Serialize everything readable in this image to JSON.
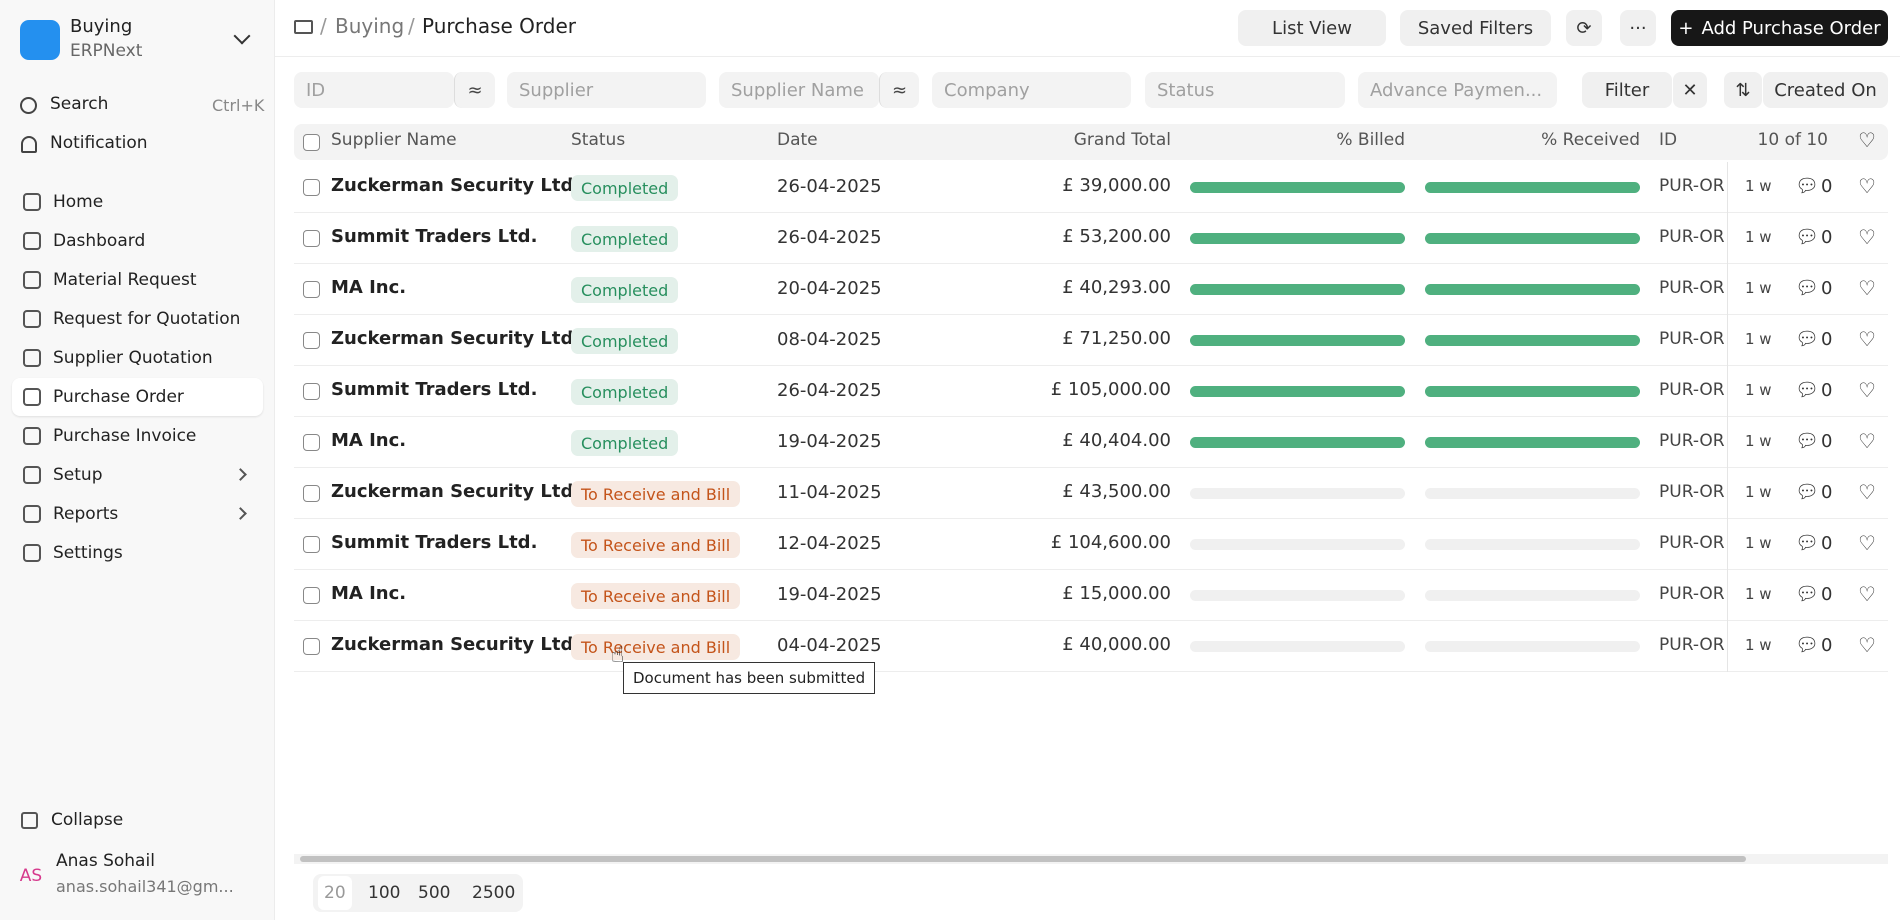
{
  "sidebar": {
    "app": "Buying",
    "company": "ERPNext",
    "search": "Search",
    "shortcut": "Ctrl+K",
    "notification": "Notification",
    "items": [
      {
        "label": "Home"
      },
      {
        "label": "Dashboard"
      },
      {
        "label": "Material Request"
      },
      {
        "label": "Request for Quotation"
      },
      {
        "label": "Supplier Quotation"
      },
      {
        "label": "Purchase Order",
        "active": true
      },
      {
        "label": "Purchase Invoice"
      },
      {
        "label": "Setup",
        "submenu": true
      },
      {
        "label": "Reports",
        "submenu": true
      },
      {
        "label": "Settings"
      }
    ],
    "collapse": "Collapse",
    "user": {
      "initials": "AS",
      "name": "Anas Sohail",
      "email": "anas.sohail341@gm..."
    }
  },
  "header": {
    "breadcrumbs": [
      "Buying",
      "Purchase Order"
    ],
    "list_view": "List View",
    "saved_filters": "Saved Filters",
    "add_button": "Add Purchase Order"
  },
  "filters": {
    "id": "ID",
    "supplier": "Supplier",
    "supplier_name": "Supplier Name",
    "company": "Company",
    "status": "Status",
    "advance": "Advance Paymen...",
    "filter": "Filter",
    "sort": "Created On"
  },
  "table": {
    "columns": [
      "Supplier Name",
      "Status",
      "Date",
      "Grand Total",
      "% Billed",
      "% Received",
      "ID"
    ],
    "count": "10 of 10",
    "percent_scale": [
      0,
      100
    ],
    "rows": [
      {
        "supplier": "Zuckerman Security Ltd.",
        "status": "Completed",
        "status_color": "#278f5e",
        "date": "26-04-2025",
        "total": "£ 39,000.00",
        "billed": 100,
        "received": 100,
        "id": "PUR-OR",
        "modified": "1 w",
        "comments": 0
      },
      {
        "supplier": "Summit Traders Ltd.",
        "status": "Completed",
        "status_color": "#278f5e",
        "date": "26-04-2025",
        "total": "£ 53,200.00",
        "billed": 100,
        "received": 100,
        "id": "PUR-OR",
        "modified": "1 w",
        "comments": 0
      },
      {
        "supplier": "MA Inc.",
        "status": "Completed",
        "status_color": "#278f5e",
        "date": "20-04-2025",
        "total": "£ 40,293.00",
        "billed": 100,
        "received": 100,
        "id": "PUR-OR",
        "modified": "1 w",
        "comments": 0
      },
      {
        "supplier": "Zuckerman Security Ltd.",
        "status": "Completed",
        "status_color": "#278f5e",
        "date": "08-04-2025",
        "total": "£ 71,250.00",
        "billed": 100,
        "received": 100,
        "id": "PUR-OR",
        "modified": "1 w",
        "comments": 0
      },
      {
        "supplier": "Summit Traders Ltd.",
        "status": "Completed",
        "status_color": "#278f5e",
        "date": "26-04-2025",
        "total": "£ 105,000.00",
        "billed": 100,
        "received": 100,
        "id": "PUR-OR",
        "modified": "1 w",
        "comments": 0
      },
      {
        "supplier": "MA Inc.",
        "status": "Completed",
        "status_color": "#278f5e",
        "date": "19-04-2025",
        "total": "£ 40,404.00",
        "billed": 100,
        "received": 100,
        "id": "PUR-OR",
        "modified": "1 w",
        "comments": 0
      },
      {
        "supplier": "Zuckerman Security Ltd.",
        "status": "To Receive and Bill",
        "status_color": "#c4541a",
        "date": "11-04-2025",
        "total": "£ 43,500.00",
        "billed": 0,
        "received": 0,
        "id": "PUR-OR",
        "modified": "1 w",
        "comments": 0
      },
      {
        "supplier": "Summit Traders Ltd.",
        "status": "To Receive and Bill",
        "status_color": "#c4541a",
        "date": "12-04-2025",
        "total": "£ 104,600.00",
        "billed": 0,
        "received": 0,
        "id": "PUR-OR",
        "modified": "1 w",
        "comments": 0
      },
      {
        "supplier": "MA Inc.",
        "status": "To Receive and Bill",
        "status_color": "#c4541a",
        "date": "19-04-2025",
        "total": "£ 15,000.00",
        "billed": 0,
        "received": 0,
        "id": "PUR-OR",
        "modified": "1 w",
        "comments": 0
      },
      {
        "supplier": "Zuckerman Security Ltd.",
        "status": "To Receive and Bill",
        "status_color": "#c4541a",
        "date": "04-04-2025",
        "total": "£ 40,000.00",
        "billed": 0,
        "received": 0,
        "id": "PUR-OR",
        "modified": "1 w",
        "comments": 0
      }
    ]
  },
  "pagination": [
    "20",
    "100",
    "500",
    "2500"
  ],
  "tooltip": "Document has been submitted"
}
